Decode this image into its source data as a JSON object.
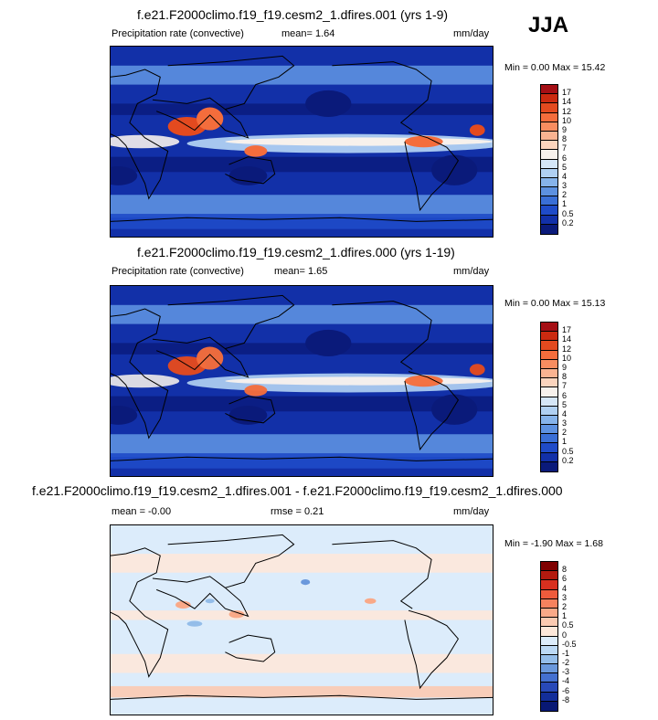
{
  "season": "JJA",
  "panels": [
    {
      "id": "p1",
      "title": "f.e21.F2000climo.f19_f19.cesm2_1.dfires.001 (yrs 1-9)",
      "variable": "Precipitation rate (convective)",
      "stat": "mean=  1.64",
      "units": "mm/day",
      "minmax": "Min =  0.00 Max = 15.42",
      "levels": [
        "17",
        "14",
        "12",
        "10",
        "9",
        "8",
        "7",
        "6",
        "5",
        "4",
        "3",
        "2",
        "1",
        "0.5",
        "0.2"
      ],
      "colors": [
        "#a50f15",
        "#cb2a10",
        "#e34a1f",
        "#f46d3c",
        "#f88d60",
        "#f9b391",
        "#fbd4bd",
        "#f7f1ec",
        "#d5e6f7",
        "#b0d0f2",
        "#86b3ea",
        "#5d91e0",
        "#3a6fd6",
        "#1f4bc8",
        "#1230a8",
        "#0a1a7a"
      ],
      "map_kind": "abs",
      "band_strength": 1.0
    },
    {
      "id": "p2",
      "title": "f.e21.F2000climo.f19_f19.cesm2_1.dfires.000 (yrs 1-19)",
      "variable": "Precipitation rate (convective)",
      "stat": "mean=  1.65",
      "units": "mm/day",
      "minmax": "Min =  0.00 Max = 15.13",
      "levels": [
        "17",
        "14",
        "12",
        "10",
        "9",
        "8",
        "7",
        "6",
        "5",
        "4",
        "3",
        "2",
        "1",
        "0.5",
        "0.2"
      ],
      "colors": [
        "#a50f15",
        "#cb2a10",
        "#e34a1f",
        "#f46d3c",
        "#f88d60",
        "#f9b391",
        "#fbd4bd",
        "#f7f1ec",
        "#d5e6f7",
        "#b0d0f2",
        "#86b3ea",
        "#5d91e0",
        "#3a6fd6",
        "#1f4bc8",
        "#1230a8",
        "#0a1a7a"
      ],
      "map_kind": "abs",
      "band_strength": 0.97
    },
    {
      "id": "p3",
      "title": "f.e21.F2000climo.f19_f19.cesm2_1.dfires.001 - f.e21.F2000climo.f19_f19.cesm2_1.dfires.000",
      "variable": "",
      "stat": "mean = -0.00",
      "rmse": "rmse =  0.21",
      "units": "mm/day",
      "minmax": "Min = -1.90 Max =  1.68",
      "levels": [
        "8",
        "6",
        "4",
        "3",
        "2",
        "1",
        "0.5",
        "0",
        "-0.5",
        "-1",
        "-2",
        "-3",
        "-4",
        "-6",
        "-8"
      ],
      "colors": [
        "#7f0000",
        "#b31a0f",
        "#d7301f",
        "#ef5b3c",
        "#f7825e",
        "#f9a988",
        "#fbcab1",
        "#fde8da",
        "#dcecfb",
        "#bcd9f5",
        "#94bde9",
        "#6a98dc",
        "#4470d0",
        "#2849b8",
        "#132e9a",
        "#081874"
      ],
      "map_kind": "diff",
      "band_strength": 0.0
    }
  ]
}
